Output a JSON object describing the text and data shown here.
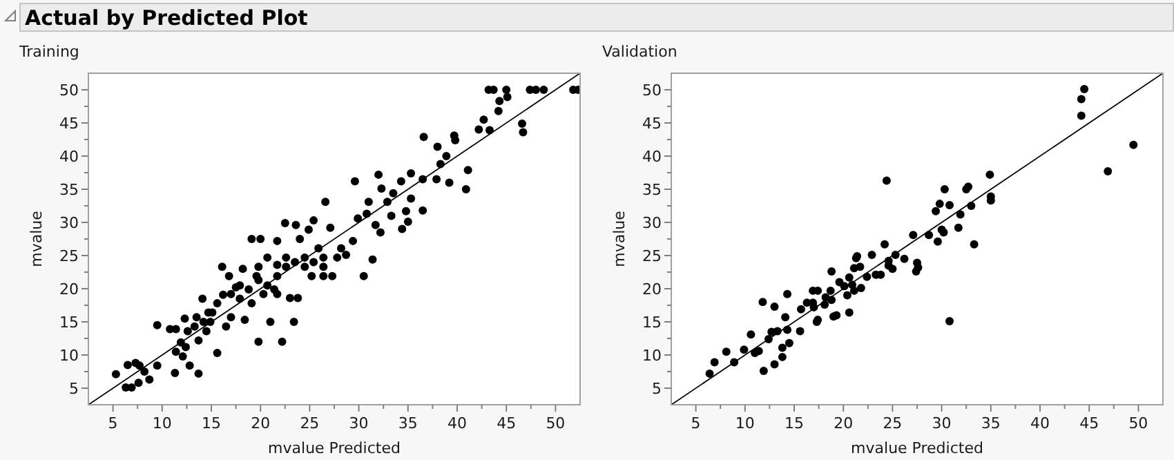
{
  "chart_data": [
    {
      "type": "scatter",
      "title": "Actual by Predicted Plot",
      "subtitle": "Training",
      "xlabel": "mvalue Predicted",
      "ylabel": "mvalue",
      "xlim": [
        2.5,
        52.5
      ],
      "ylim": [
        2.5,
        52.5
      ],
      "xticks": [
        5,
        10,
        15,
        20,
        25,
        30,
        35,
        40,
        45,
        50,
        {
          "value": 7.5,
          "label": null
        },
        {
          "value": 12.5,
          "label": null
        },
        {
          "value": 17.5,
          "label": null
        },
        {
          "value": 22.5,
          "label": null
        },
        {
          "value": 27.5,
          "label": null
        },
        {
          "value": 32.5,
          "label": null
        },
        {
          "value": 37.5,
          "label": null
        },
        {
          "value": 42.5,
          "label": null
        },
        {
          "value": 47.5,
          "label": null
        }
      ],
      "yticks": [
        5,
        10,
        15,
        20,
        25,
        30,
        35,
        40,
        45,
        50,
        {
          "value": 7.5,
          "label": null
        },
        {
          "value": 12.5,
          "label": null
        },
        {
          "value": 17.5,
          "label": null
        },
        {
          "value": 22.5,
          "label": null
        },
        {
          "value": 27.5,
          "label": null
        },
        {
          "value": 32.5,
          "label": null
        },
        {
          "value": 37.5,
          "label": null
        },
        {
          "value": 42.5,
          "label": null
        },
        {
          "value": 47.5,
          "label": null
        }
      ],
      "grid": false,
      "series": [
        {
          "marker": "circle",
          "color": "#000000",
          "x": [
            5.3,
            6.3,
            6.9,
            6.5,
            7.3,
            7.7,
            7.6,
            8.2,
            8.7,
            9.5,
            9.5,
            10.8,
            11.4,
            11.3,
            11.4,
            11.9,
            12.1,
            12.3,
            12.6,
            12.8,
            12.4,
            13.5,
            13.7,
            13.7,
            14.1,
            14.5,
            14.9,
            15.1,
            15.6,
            16.1,
            16.2,
            16.5,
            17.0,
            16.8,
            17.5,
            17.9,
            18.4,
            18.2,
            19.1,
            19.6,
            19.8,
            20.0,
            20.3,
            20.7,
            21.0,
            21.4,
            21.7,
            22.2,
            22.5,
            22.6,
            23.0,
            23.4,
            23.8,
            24.0,
            23.6,
            24.5,
            24.9,
            25.2,
            25.4,
            25.9,
            26.4,
            26.6,
            27.1,
            27.3,
            28.2,
            28.7,
            29.4,
            29.6,
            29.9,
            30.5,
            30.8,
            31.0,
            31.4,
            31.7,
            32.0,
            32.3,
            32.2,
            32.9,
            33.3,
            33.5,
            34.3,
            34.4,
            34.8,
            35.0,
            35.3,
            35.3,
            36.5,
            36.5,
            36.6,
            37.9,
            38.0,
            38.3,
            38.9,
            39.2,
            39.7,
            39.8,
            40.9,
            41.1,
            42.2,
            42.7,
            43.2,
            43.7,
            43.3,
            44.2,
            44.3,
            45.0,
            45.1,
            46.6,
            46.7,
            47.4,
            48.0,
            48.8,
            51.8,
            52.3,
            21.7,
            22.6,
            23.5,
            19.8,
            18.8,
            17.9,
            20.7,
            21.7,
            17.0,
            15.6,
            14.7,
            14.2,
            13.3,
            19.8,
            24.5,
            26.4,
            27.8,
            25.4,
            19.1,
            21.7,
            26.4
          ],
          "values": [
            7.1,
            5.1,
            5.1,
            8.5,
            8.8,
            8.4,
            5.8,
            7.5,
            6.3,
            8.4,
            14.5,
            13.9,
            13.9,
            7.3,
            10.5,
            11.9,
            9.8,
            15.5,
            13.6,
            8.4,
            11.2,
            15.7,
            7.2,
            12.2,
            18.5,
            13.6,
            15.0,
            16.4,
            10.3,
            23.3,
            19.1,
            14.3,
            15.7,
            21.9,
            20.2,
            18.5,
            15.3,
            23.0,
            27.5,
            21.9,
            12.0,
            27.5,
            19.2,
            24.7,
            15.0,
            19.9,
            27.2,
            12.0,
            29.9,
            23.3,
            18.6,
            15.0,
            18.6,
            27.5,
            29.6,
            24.7,
            28.9,
            21.9,
            30.3,
            26.1,
            24.7,
            33.1,
            29.2,
            21.9,
            26.1,
            25.1,
            27.2,
            36.2,
            30.6,
            21.9,
            31.3,
            33.1,
            24.4,
            29.6,
            37.2,
            35.1,
            28.5,
            33.1,
            31.0,
            34.4,
            36.2,
            29.0,
            31.7,
            30.1,
            37.4,
            33.6,
            36.5,
            31.8,
            42.9,
            36.5,
            41.4,
            38.8,
            40.0,
            36.0,
            43.1,
            42.4,
            35.0,
            37.9,
            44.0,
            45.5,
            50,
            50,
            43.9,
            46.8,
            48.3,
            50,
            48.9,
            44.9,
            43.6,
            50,
            50,
            50,
            50,
            50,
            21.9,
            24.7,
            24.0,
            21.3,
            19.9,
            20.5,
            20.5,
            19.2,
            19.2,
            17.8,
            16.4,
            15.0,
            14.3,
            23.3,
            23.3,
            23.3,
            24.7,
            24.0,
            17.8,
            23.6,
            21.9
          ]
        },
        {
          "type": "line",
          "color": "#000000",
          "x": [
            2.5,
            52.5
          ],
          "values": [
            2.5,
            52.5
          ]
        }
      ]
    },
    {
      "type": "scatter",
      "subtitle": "Validation",
      "xlabel": "mvalue Predicted",
      "ylabel": "mvalue",
      "xlim": [
        2.5,
        52.5
      ],
      "ylim": [
        2.5,
        52.5
      ],
      "xticks": [
        5,
        10,
        15,
        20,
        25,
        30,
        35,
        40,
        45,
        50,
        {
          "value": 7.5,
          "label": null
        },
        {
          "value": 12.5,
          "label": null
        },
        {
          "value": 17.5,
          "label": null
        },
        {
          "value": 22.5,
          "label": null
        },
        {
          "value": 27.5,
          "label": null
        },
        {
          "value": 32.5,
          "label": null
        },
        {
          "value": 37.5,
          "label": null
        },
        {
          "value": 42.5,
          "label": null
        },
        {
          "value": 47.5,
          "label": null
        }
      ],
      "yticks": [
        5,
        10,
        15,
        20,
        25,
        30,
        35,
        40,
        45,
        50,
        {
          "value": 7.5,
          "label": null
        },
        {
          "value": 12.5,
          "label": null
        },
        {
          "value": 17.5,
          "label": null
        },
        {
          "value": 22.5,
          "label": null
        },
        {
          "value": 27.5,
          "label": null
        },
        {
          "value": 32.5,
          "label": null
        },
        {
          "value": 37.5,
          "label": null
        },
        {
          "value": 42.5,
          "label": null
        },
        {
          "value": 47.5,
          "label": null
        }
      ],
      "grid": false,
      "series": [
        {
          "marker": "circle",
          "color": "#000000",
          "x": [
            6.4,
            6.9,
            8.1,
            8.9,
            9.9,
            10.6,
            11.0,
            11.4,
            11.8,
            11.9,
            12.4,
            12.7,
            13.0,
            13.0,
            13.3,
            13.8,
            13.8,
            14.1,
            14.3,
            14.3,
            14.5,
            15.6,
            15.7,
            16.3,
            16.9,
            16.9,
            17.0,
            17.3,
            17.4,
            17.4,
            18.1,
            18.2,
            18.7,
            18.8,
            18.8,
            19.0,
            19.3,
            19.6,
            20.1,
            20.4,
            20.6,
            20.6,
            20.9,
            21.1,
            21.1,
            21.3,
            21.4,
            21.7,
            21.8,
            22.4,
            22.9,
            23.3,
            23.8,
            24.2,
            24.4,
            24.6,
            24.6,
            25.0,
            25.3,
            26.2,
            27.1,
            27.4,
            27.5,
            27.6,
            28.7,
            29.4,
            29.6,
            29.8,
            30.0,
            30.2,
            30.3,
            30.8,
            30.8,
            31.7,
            31.9,
            32.5,
            32.7,
            33.0,
            33.3,
            34.9,
            35.0,
            35.0,
            44.2,
            44.2,
            44.5,
            46.9,
            49.5
          ],
          "values": [
            7.2,
            8.9,
            10.5,
            8.9,
            10.8,
            13.1,
            10.3,
            10.6,
            18.0,
            7.6,
            12.4,
            13.5,
            17.3,
            8.6,
            13.6,
            9.7,
            11.1,
            15.7,
            13.8,
            19.2,
            11.8,
            13.6,
            16.9,
            17.9,
            17.9,
            19.7,
            17.2,
            15.0,
            15.3,
            19.7,
            17.6,
            18.7,
            19.7,
            22.6,
            18.3,
            15.8,
            16.0,
            21.0,
            20.4,
            19.0,
            16.4,
            21.7,
            20.6,
            19.7,
            23.1,
            24.6,
            24.9,
            23.3,
            20.1,
            21.8,
            25.1,
            22.1,
            22.1,
            26.7,
            36.3,
            24.2,
            23.5,
            23.0,
            25.1,
            24.5,
            28.1,
            22.6,
            23.9,
            23.2,
            28.1,
            31.7,
            27.1,
            32.8,
            28.9,
            28.5,
            35.0,
            15.1,
            32.6,
            29.2,
            31.2,
            35.0,
            35.4,
            32.5,
            26.7,
            37.2,
            33.9,
            33.3,
            46.1,
            48.6,
            50.1,
            37.7,
            41.7
          ]
        },
        {
          "type": "line",
          "color": "#000000",
          "x": [
            2.5,
            52.5
          ],
          "values": [
            2.5,
            52.5
          ]
        }
      ]
    }
  ]
}
